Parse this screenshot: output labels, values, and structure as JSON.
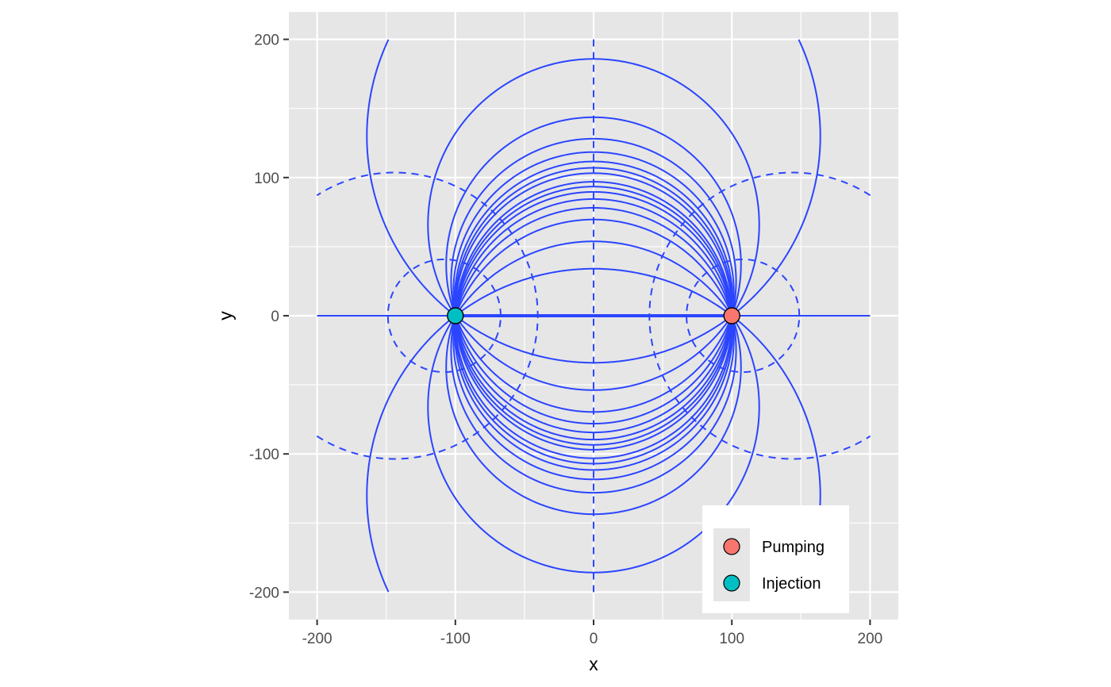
{
  "chart_data": {
    "type": "scatter",
    "title": "",
    "xlabel": "x",
    "ylabel": "y",
    "xlim": [
      -220,
      220
    ],
    "ylim": [
      -220,
      220
    ],
    "x_ticks": [
      -200,
      -100,
      0,
      100,
      200
    ],
    "y_ticks": [
      -200,
      -100,
      0,
      100,
      200
    ],
    "x_tick_labels": [
      "-200",
      "-100",
      "0",
      "100",
      "200"
    ],
    "y_tick_labels": [
      "-200",
      "-100",
      "0",
      "100",
      "200"
    ],
    "grid": true,
    "aspect": "equal",
    "line_color": "#2b45ff",
    "panel_color": "#e6e6e6",
    "grid_color": "#ffffff",
    "wells": [
      {
        "name": "Pumping",
        "x": 100,
        "y": 0,
        "color": "#f8766d"
      },
      {
        "name": "Injection",
        "x": -100,
        "y": 0,
        "color": "#00bfc4"
      }
    ],
    "streamlines": {
      "style": "solid",
      "note_values_are_circle_center_y": true,
      "circle_center_y": [
        -130,
        -66,
        -37,
        -25,
        -17,
        -11,
        -6.8,
        -3.1,
        3.1,
        6.8,
        11,
        17,
        25,
        37,
        66,
        130
      ]
    },
    "equipotentials": {
      "style": "dashed",
      "circle_center_x": [
        -144,
        -108,
        108,
        144
      ],
      "perpendicular_bisector_x": 0
    },
    "legend": {
      "position": "bottom-right",
      "entries": [
        "Pumping",
        "Injection"
      ]
    }
  }
}
